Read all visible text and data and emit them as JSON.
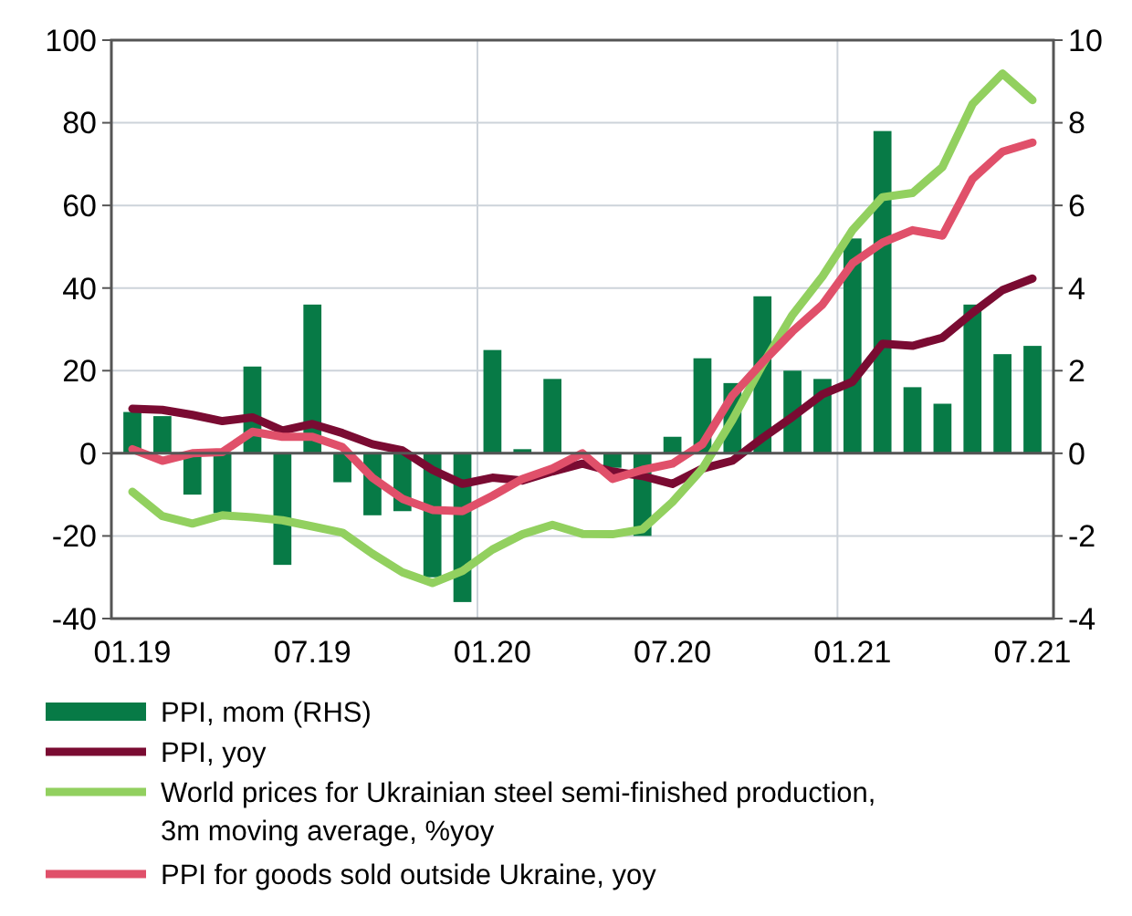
{
  "chart_data": {
    "type": "bar",
    "categories": [
      "01.19",
      null,
      null,
      null,
      null,
      null,
      "07.19",
      null,
      null,
      null,
      null,
      null,
      "01.20",
      null,
      null,
      null,
      null,
      null,
      "07.20",
      null,
      null,
      null,
      null,
      null,
      "01.21",
      null,
      null,
      null,
      null,
      null,
      "07.21"
    ],
    "series": [
      {
        "name": "PPI, mom (RHS)",
        "axis": "y2",
        "color": "#077a46",
        "values": [
          1.0,
          0.9,
          -1.0,
          -1.45,
          2.1,
          -2.7,
          3.6,
          -0.7,
          -1.5,
          -1.4,
          -3.0,
          -3.6,
          2.5,
          0.1,
          1.8,
          null,
          -0.35,
          -2.0,
          0.4,
          2.3,
          1.7,
          3.8,
          2.0,
          1.8,
          5.2,
          7.8,
          1.6,
          1.2,
          3.6,
          2.4,
          2.6
        ]
      },
      {
        "name": "PPI, yoy",
        "type": "line",
        "color": "#7a0b32",
        "values": [
          10.8,
          10.5,
          9.3,
          7.8,
          8.7,
          5.5,
          7.1,
          4.9,
          2.2,
          0.7,
          -4,
          -7.4,
          -5.9,
          -6.6,
          -4.4,
          -2.5,
          -4.4,
          -5.5,
          -7.4,
          -3.7,
          -1.8,
          3.7,
          8.8,
          14.3,
          17.3,
          26.5,
          26,
          28,
          34,
          39.5,
          42.3
        ]
      },
      {
        "name": "World prices for Ukrainian steel semi-finished production, 3m moving average, %yoy",
        "type": "line",
        "color": "#92d05f",
        "values": [
          -9.3,
          -15.2,
          -17,
          -15,
          -15.5,
          -16.2,
          -17.7,
          -19.2,
          -24.3,
          -28.8,
          -31.4,
          -28.5,
          -23.3,
          -19.6,
          -17.3,
          -19.5,
          -19.6,
          -18.4,
          -11.8,
          -3.7,
          8.1,
          21.4,
          33.5,
          42.8,
          54,
          62,
          63,
          69.3,
          84.5,
          91.9,
          85.5
        ]
      },
      {
        "name": "PPI for goods sold outside Ukraine, yoy",
        "type": "line",
        "color": "#e0506a",
        "values": [
          1,
          -1.8,
          0,
          0.3,
          5.2,
          4,
          4,
          1.5,
          -5.9,
          -11,
          -13.7,
          -14,
          -10.3,
          -6.2,
          -3.7,
          0,
          -6.2,
          -4,
          -2.5,
          2.2,
          14,
          22,
          29.5,
          36,
          46,
          51,
          54,
          52.7,
          66.4,
          73,
          75.2
        ]
      }
    ],
    "ylim": [
      -40,
      100
    ],
    "yticks": [
      -40,
      -20,
      0,
      20,
      40,
      60,
      80,
      100
    ],
    "y2lim": [
      -4,
      10
    ],
    "y2ticks": [
      -4,
      -2,
      0,
      2,
      4,
      6,
      8,
      10
    ],
    "grid": true,
    "legend": "bottom"
  }
}
